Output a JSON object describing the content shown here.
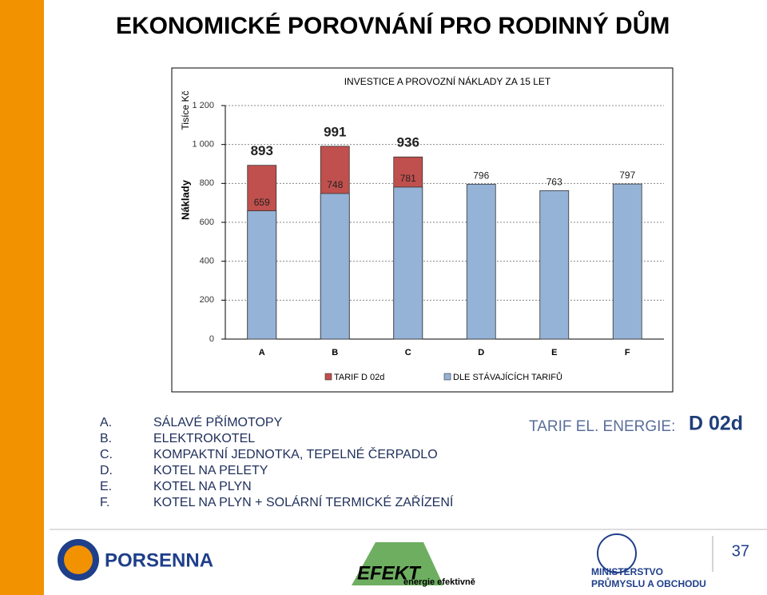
{
  "slide": {
    "title": "EKONOMICKÉ POROVNÁNÍ PRO RODINNÝ DŮM",
    "list": [
      {
        "letter": "A.",
        "text": "SÁLAVÉ PŘÍMOTOPY"
      },
      {
        "letter": "B.",
        "text": "ELEKTROKOTEL"
      },
      {
        "letter": "C.",
        "text": "KOMPAKTNÍ JEDNOTKA, TEPELNÉ ČERPADLO"
      },
      {
        "letter": "D.",
        "text": "KOTEL NA PELETY"
      },
      {
        "letter": "E.",
        "text": "KOTEL NA PLYN"
      },
      {
        "letter": "F.",
        "text": "KOTEL NA PLYN + SOLÁRNÍ TERMICKÉ ZAŘÍZENÍ"
      }
    ],
    "tariff_label": "TARIF EL. ENERGIE:",
    "tariff_value": "D 02d",
    "logo_porsenna": "PORSENNA",
    "logo_efekt": "EFEKT",
    "logo_efekt_sub": "energie efektivně",
    "logo_mpo_1": "MINISTERSTVO",
    "logo_mpo_2": "PRŮMYSLU A OBCHODU",
    "page_number": "37"
  },
  "chart_data": {
    "type": "bar",
    "title": "INVESTICE A PROVOZNÍ NÁKLADY ZA 15 LET",
    "y_label": "Náklady",
    "y_unit": "Tisíce Kč",
    "categories": [
      "A",
      "B",
      "C",
      "D",
      "E",
      "F"
    ],
    "series": [
      {
        "name": "TARIF D 02d",
        "color": "#c0504d",
        "values": [
          893,
          991,
          936,
          null,
          null,
          null
        ]
      },
      {
        "name": "DLE STÁVAJÍCÍCH TARIFŮ",
        "color": "#95b3d7",
        "values": [
          659,
          748,
          781,
          796,
          763,
          797
        ]
      }
    ],
    "ylim": [
      0,
      1200
    ],
    "yticks": [
      0,
      200,
      400,
      600,
      800,
      {
        "value": 1000,
        "label": "1 000"
      },
      {
        "value": 1200,
        "label": "1 200"
      }
    ],
    "grid": true,
    "legend": "bottom"
  }
}
